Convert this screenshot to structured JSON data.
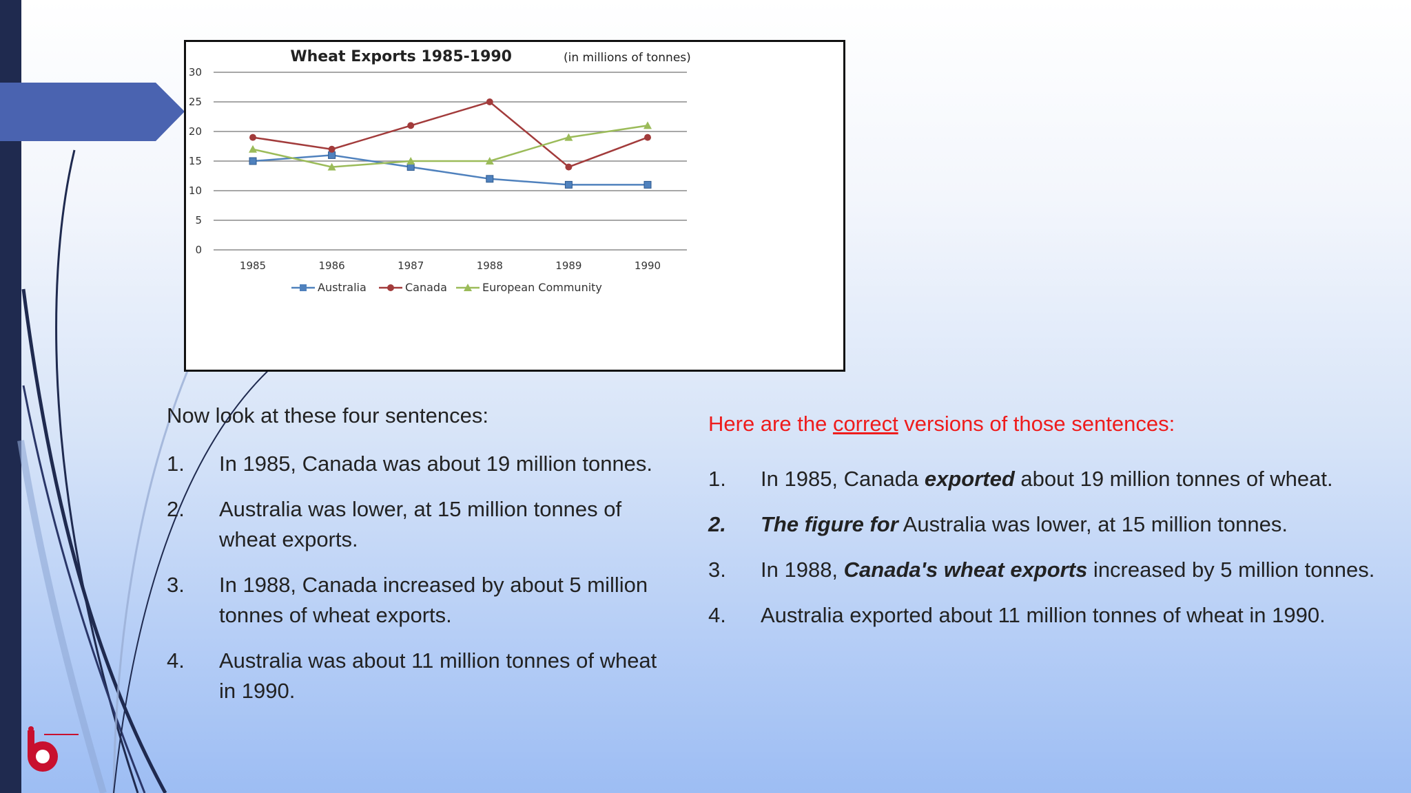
{
  "colors": {
    "sidebar": "#1f2a4f",
    "arrow": "#4a63b0",
    "australia": "#4f81bd",
    "canada": "#a23b3b",
    "european_community": "#9bbb59",
    "correct_heading": "#ee1c1c"
  },
  "chart_data": {
    "type": "line",
    "title": "Wheat Exports 1985-1990",
    "subtitle": "(in millions of tonnes)",
    "xlabel": "",
    "ylabel": "",
    "categories": [
      "1985",
      "1986",
      "1987",
      "1988",
      "1989",
      "1990"
    ],
    "yticks": [
      "0",
      "5",
      "10",
      "15",
      "20",
      "25",
      "30"
    ],
    "ylim": [
      0,
      30
    ],
    "grid": "horizontal",
    "legend": "bottom",
    "series": [
      {
        "name": "Australia",
        "marker": "square",
        "values": [
          15,
          16,
          14,
          12,
          11,
          11
        ]
      },
      {
        "name": "Canada",
        "marker": "circle",
        "values": [
          19,
          17,
          21,
          25,
          14,
          19
        ]
      },
      {
        "name": "European Community",
        "marker": "triangle",
        "values": [
          17,
          14,
          15,
          15,
          19,
          21
        ]
      }
    ]
  },
  "left": {
    "intro": "Now look at these four sentences:",
    "items": [
      {
        "num": "1.",
        "text": "In 1985, Canada was about 19 million tonnes."
      },
      {
        "num": "2.",
        "text": "Australia was lower, at 15 million tonnes of wheat exports."
      },
      {
        "num": "3.",
        "text": "In 1988, Canada increased by about 5 million tonnes of wheat exports."
      },
      {
        "num": "4.",
        "text": "Australia was about 11 million tonnes of wheat in 1990."
      }
    ]
  },
  "right": {
    "intro_before": "Here are the ",
    "intro_underlined": "correct",
    "intro_after": " versions of those sentences:",
    "items": [
      {
        "num": "1.",
        "a": "In 1985, Canada ",
        "em": "exported",
        "b": " about 19 million tonnes of wheat."
      },
      {
        "num": "2.",
        "a": "",
        "em": "The figure for",
        "b": " Australia was lower, at 15 million tonnes."
      },
      {
        "num": "3.",
        "a": "In 1988, ",
        "em": "Canada's wheat exports",
        "b": " increased by 5 million tonnes."
      },
      {
        "num": "4.",
        "a": "Australia exported about 11 million tonnes of wheat in 1990.",
        "em": "",
        "b": ""
      }
    ]
  }
}
